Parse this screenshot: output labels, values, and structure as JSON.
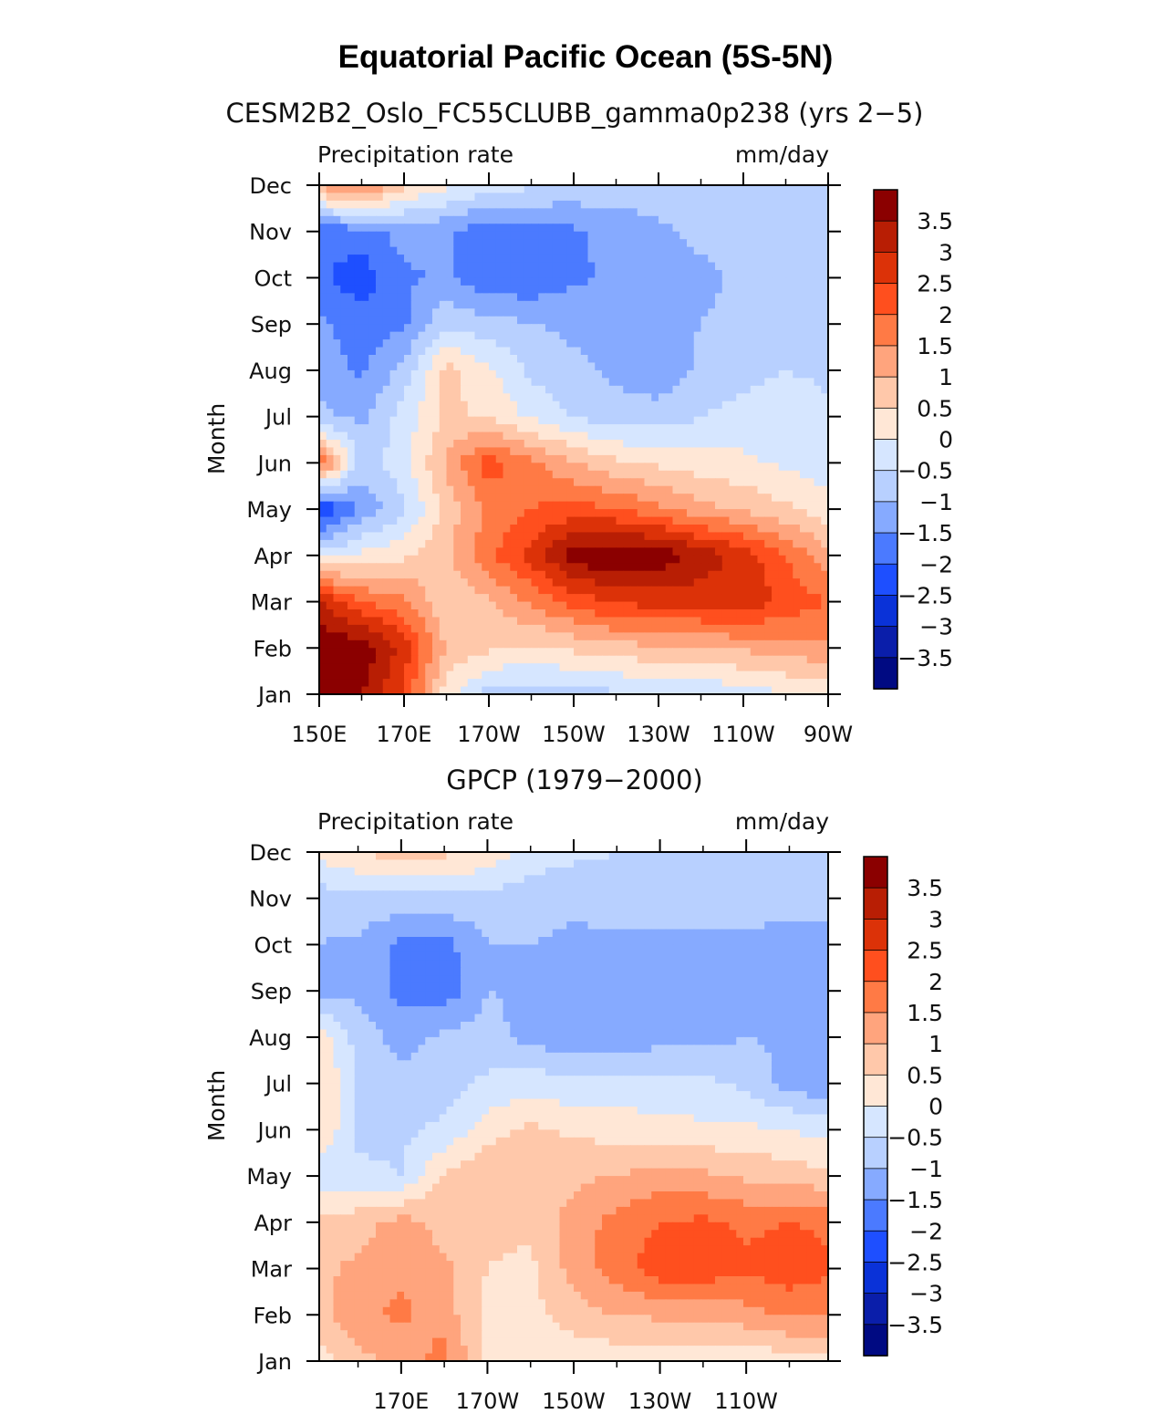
{
  "figure": {
    "title": "Equatorial Pacific Ocean (5S-5N)"
  },
  "colorbar": {
    "levels": [
      "3.5",
      "3",
      "2.5",
      "2",
      "1.5",
      "1",
      "0.5",
      "0",
      "−0.5",
      "−1",
      "−1.5",
      "−2",
      "−2.5",
      "−3",
      "−3.5"
    ],
    "colors": [
      "#8b0000",
      "#b81e04",
      "#dc3208",
      "#ff4f1e",
      "#ff7a45",
      "#ffa47d",
      "#ffc8aa",
      "#ffe7d6",
      "#d6e6ff",
      "#b8d0ff",
      "#86aaff",
      "#4b7aff",
      "#1e4fff",
      "#0a32d8",
      "#0a1eaa",
      "#000a82"
    ]
  },
  "chart_data": [
    {
      "type": "heatmap",
      "title": "CESM2B2_Oslo_FC55CLUBB_gamma0p238 (yrs 2−5)",
      "left_label": "Precipitation rate",
      "right_label": "mm/day",
      "xlabel": "",
      "ylabel": "Month",
      "xtick_labels": [
        "150E",
        "170E",
        "170W",
        "150W",
        "130W",
        "110W",
        "90W"
      ],
      "xtick_lon": [
        150,
        170,
        190,
        210,
        230,
        250,
        270
      ],
      "xlim": [
        150,
        270
      ],
      "ytick_labels": [
        "Jan",
        "Feb",
        "Mar",
        "Apr",
        "May",
        "Jun",
        "Jul",
        "Aug",
        "Sep",
        "Oct",
        "Nov",
        "Dec"
      ],
      "ylim": [
        1,
        12
      ],
      "grid_lon": [
        150,
        160,
        170,
        180,
        190,
        200,
        210,
        220,
        230,
        240,
        250,
        260,
        270
      ],
      "z": [
        [
          3.6,
          3.5,
          2.4,
          0.2,
          -0.7,
          -0.8,
          -0.7,
          -0.6,
          -0.5,
          -0.4,
          -0.3,
          0.0,
          0.2
        ],
        [
          3.9,
          3.9,
          2.8,
          0.9,
          0.6,
          0.4,
          0.6,
          0.8,
          0.9,
          1.0,
          1.1,
          1.2,
          1.4
        ],
        [
          3.1,
          2.0,
          1.6,
          0.6,
          0.9,
          1.6,
          2.2,
          2.6,
          2.7,
          2.7,
          2.8,
          2.4,
          2.0
        ],
        [
          -0.3,
          0.1,
          0.4,
          0.9,
          1.9,
          2.7,
          3.8,
          4.0,
          3.9,
          3.3,
          2.8,
          2.0,
          1.1
        ],
        [
          -2.6,
          -1.4,
          -0.6,
          0.7,
          1.6,
          2.0,
          2.2,
          2.0,
          1.6,
          1.2,
          0.9,
          0.6,
          0.2
        ],
        [
          2.0,
          -0.8,
          -0.2,
          1.1,
          2.3,
          1.6,
          1.0,
          0.6,
          0.4,
          0.2,
          0.1,
          -0.1,
          -0.3
        ],
        [
          -0.9,
          -1.1,
          -0.3,
          0.6,
          0.4,
          -0.1,
          -0.5,
          -0.8,
          -0.8,
          -0.5,
          -0.3,
          -0.2,
          -0.4
        ],
        [
          -1.2,
          -1.6,
          -0.8,
          0.7,
          0.1,
          -0.6,
          -0.9,
          -1.1,
          -1.3,
          -0.9,
          -0.7,
          -0.5,
          -0.6
        ],
        [
          -1.4,
          -1.8,
          -1.6,
          -0.6,
          -0.8,
          -1.0,
          -1.1,
          -1.1,
          -1.1,
          -1.0,
          -0.9,
          -0.9,
          -0.8
        ],
        [
          -1.9,
          -2.3,
          -1.6,
          -1.4,
          -1.9,
          -1.9,
          -1.6,
          -1.4,
          -1.2,
          -1.1,
          -0.9,
          -0.9,
          -0.8
        ],
        [
          -1.9,
          -1.7,
          -1.3,
          -1.4,
          -1.9,
          -1.8,
          -1.6,
          -1.3,
          -1.1,
          -0.9,
          -0.8,
          -0.7,
          -0.6
        ],
        [
          1.2,
          1.8,
          0.6,
          0.1,
          -0.2,
          -0.4,
          -0.6,
          -0.7,
          -0.7,
          -0.7,
          -0.6,
          -0.5,
          -0.5
        ]
      ]
    },
    {
      "type": "heatmap",
      "title": "GPCP (1979−2000)",
      "left_label": "Precipitation rate",
      "right_label": "mm/day",
      "xlabel": "",
      "ylabel": "Month",
      "xtick_labels": [
        "170E",
        "170W",
        "150W",
        "130W",
        "110W"
      ],
      "xtick_lon": [
        170,
        190,
        210,
        230,
        250
      ],
      "xlim": [
        151,
        269
      ],
      "ytick_labels": [
        "Jan",
        "Feb",
        "Mar",
        "Apr",
        "May",
        "Jun",
        "Jul",
        "Aug",
        "Sep",
        "Oct",
        "Nov",
        "Dec"
      ],
      "ylim": [
        1,
        12
      ],
      "grid_lon": [
        151,
        160,
        170,
        180,
        190,
        200,
        210,
        220,
        230,
        240,
        250,
        260,
        269
      ],
      "z": [
        [
          0.3,
          0.8,
          1.2,
          1.7,
          0.3,
          0.1,
          0.1,
          0.2,
          0.1,
          0.1,
          0.1,
          0.2,
          0.3
        ],
        [
          0.8,
          1.4,
          1.6,
          1.3,
          0.3,
          0.3,
          0.8,
          1.0,
          1.1,
          1.2,
          1.3,
          1.6,
          1.6
        ],
        [
          0.9,
          1.1,
          1.4,
          1.1,
          0.5,
          0.4,
          1.2,
          1.8,
          2.3,
          2.3,
          2.1,
          2.3,
          2.1
        ],
        [
          0.6,
          0.8,
          1.2,
          0.8,
          0.6,
          0.6,
          1.2,
          1.7,
          2.0,
          2.1,
          1.9,
          2.0,
          1.9
        ],
        [
          -0.3,
          -0.4,
          -0.5,
          0.6,
          0.9,
          0.8,
          0.9,
          1.0,
          1.2,
          1.1,
          0.9,
          0.8,
          0.6
        ],
        [
          0.5,
          -0.6,
          -0.6,
          -0.4,
          0.3,
          0.6,
          0.4,
          0.3,
          0.2,
          0.1,
          0.1,
          0.0,
          -0.2
        ],
        [
          0.6,
          -0.6,
          -0.8,
          -0.7,
          -0.4,
          -0.2,
          -0.4,
          -0.4,
          -0.3,
          -0.4,
          -0.6,
          -1.2,
          -1.4
        ],
        [
          0.3,
          -0.7,
          -1.2,
          -0.9,
          -0.8,
          -1.2,
          -1.3,
          -1.3,
          -1.2,
          -1.2,
          -1.0,
          -1.1,
          -1.4
        ],
        [
          -1.2,
          -1.1,
          -1.7,
          -1.8,
          -1.0,
          -1.1,
          -1.2,
          -1.3,
          -1.2,
          -1.2,
          -1.1,
          -1.3,
          -1.3
        ],
        [
          -1.0,
          -1.1,
          -1.6,
          -1.7,
          -1.0,
          -1.0,
          -1.2,
          -1.2,
          -1.2,
          -1.2,
          -1.1,
          -1.4,
          -1.3
        ],
        [
          -0.8,
          -0.6,
          -0.7,
          -0.6,
          -0.7,
          -0.7,
          -0.8,
          -0.6,
          -0.6,
          -0.6,
          -0.7,
          -0.7,
          -0.6
        ],
        [
          0.2,
          0.5,
          0.8,
          0.6,
          0.4,
          -0.3,
          -0.4,
          -0.5,
          -0.6,
          -0.6,
          -0.6,
          -0.6,
          -0.6
        ]
      ]
    }
  ]
}
